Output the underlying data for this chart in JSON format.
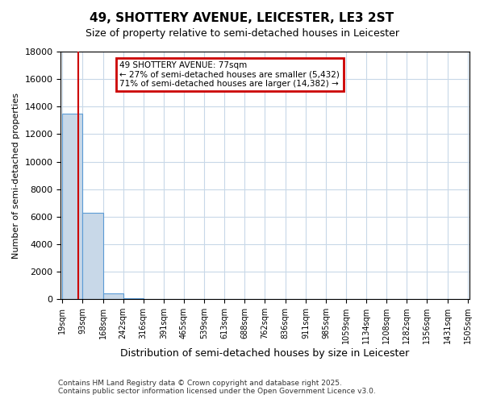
{
  "title": "49, SHOTTERY AVENUE, LEICESTER, LE3 2ST",
  "subtitle": "Size of property relative to semi-detached houses in Leicester",
  "xlabel": "Distribution of semi-detached houses by size in Leicester",
  "ylabel": "Number of semi-detached properties",
  "annotation_title": "49 SHOTTERY AVENUE: 77sqm",
  "annotation_line1": "← 27% of semi-detached houses are smaller (5,432)",
  "annotation_line2": "71% of semi-detached houses are larger (14,382) →",
  "footer_line1": "Contains HM Land Registry data © Crown copyright and database right 2025.",
  "footer_line2": "Contains public sector information licensed under the Open Government Licence v3.0.",
  "bar_edges": [
    19,
    93,
    168,
    242,
    316,
    391,
    465,
    539,
    613,
    688,
    762,
    836,
    911,
    985,
    1059,
    1134,
    1208,
    1282,
    1356,
    1431,
    1505
  ],
  "bar_heights": [
    13500,
    6300,
    400,
    50,
    20,
    10,
    8,
    5,
    4,
    3,
    3,
    2,
    2,
    2,
    1,
    1,
    1,
    1,
    1,
    1
  ],
  "bar_color": "#c8d8e8",
  "bar_edge_color": "#5b9bd5",
  "property_size": 77,
  "vline_color": "#cc0000",
  "annotation_box_color": "#cc0000",
  "background_color": "#ffffff",
  "grid_color": "#c8d8e8",
  "ylim": [
    0,
    18000
  ],
  "yticks": [
    0,
    2000,
    4000,
    6000,
    8000,
    10000,
    12000,
    14000,
    16000,
    18000
  ]
}
